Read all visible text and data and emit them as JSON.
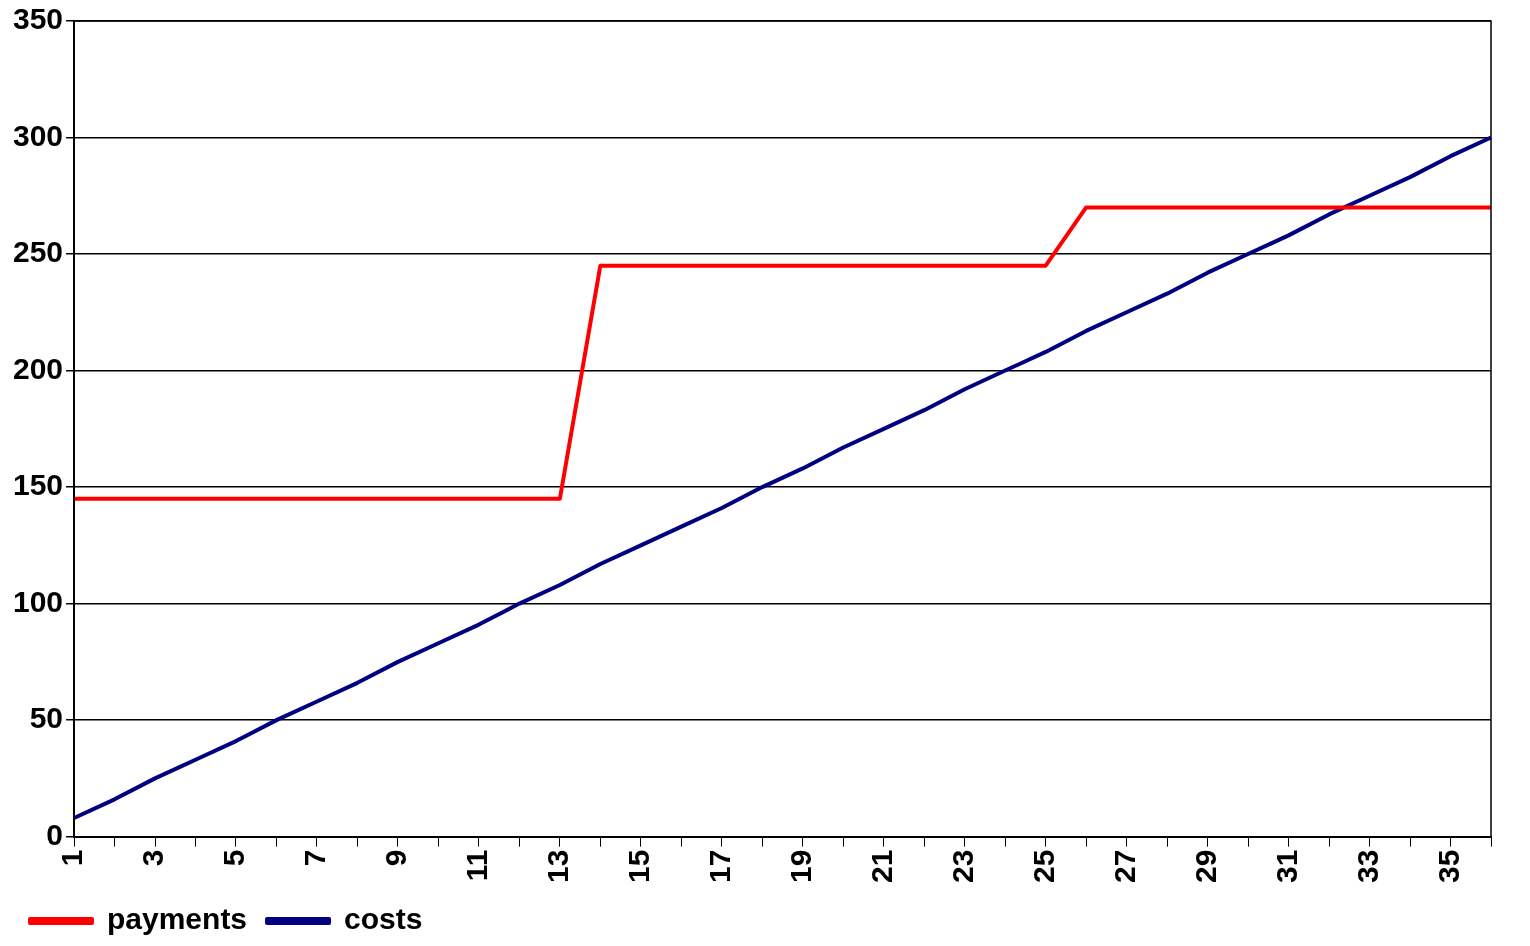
{
  "chart_data": {
    "type": "line",
    "categories": [
      "1",
      null,
      "3",
      null,
      "5",
      null,
      "7",
      null,
      "9",
      null,
      "11",
      null,
      "13",
      null,
      "15",
      null,
      "17",
      null,
      "19",
      null,
      "21",
      null,
      "23",
      null,
      "25",
      null,
      "27",
      null,
      "29",
      null,
      "31",
      null,
      "33",
      null,
      "35",
      null
    ],
    "series": [
      {
        "name": "payments",
        "color": "#ff0000",
        "values": [
          145,
          145,
          145,
          145,
          145,
          145,
          145,
          145,
          145,
          145,
          145,
          145,
          145,
          245,
          245,
          245,
          245,
          245,
          245,
          245,
          245,
          245,
          245,
          245,
          245,
          270,
          270,
          270,
          270,
          270,
          270,
          270,
          270,
          270,
          270,
          270
        ]
      },
      {
        "name": "costs",
        "color": "#000080",
        "values": [
          8,
          16,
          25,
          33,
          41,
          50,
          58,
          66,
          75,
          83,
          91,
          100,
          108,
          117,
          125,
          133,
          141,
          150,
          158,
          167,
          175,
          183,
          192,
          200,
          208,
          217,
          225,
          233,
          242,
          250,
          258,
          267,
          275,
          283,
          292,
          300
        ]
      }
    ],
    "ylim": [
      0,
      350
    ],
    "yticks": [
      0,
      50,
      100,
      150,
      200,
      250,
      300,
      350
    ],
    "grid": "y",
    "legend": "bottom left",
    "marker": "none",
    "line_style": "solid"
  }
}
